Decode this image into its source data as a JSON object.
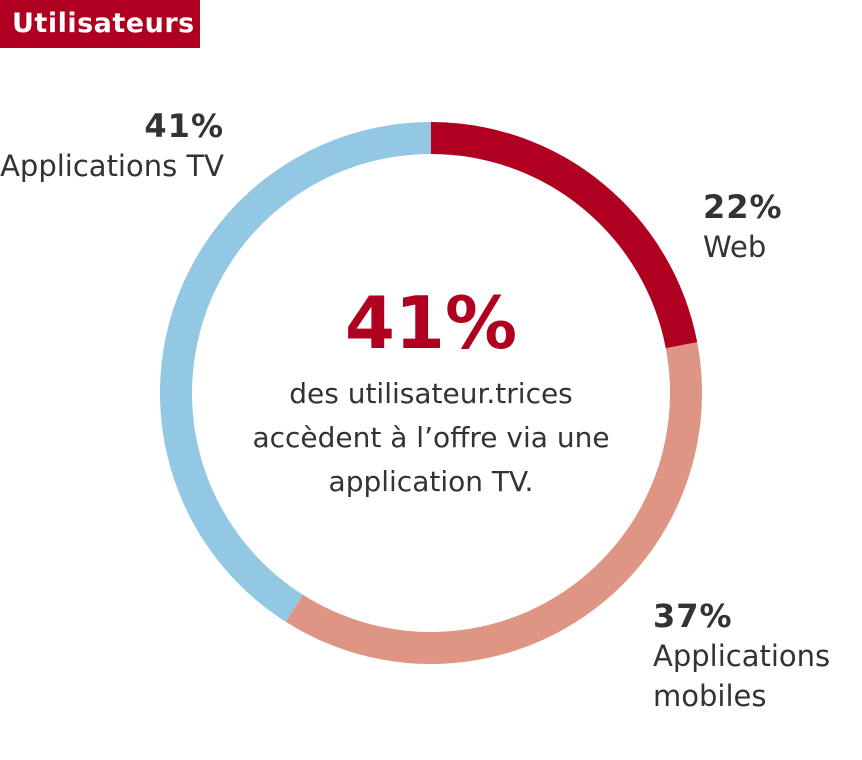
{
  "header": {
    "title": "Utilisateurs"
  },
  "center": {
    "value": "41%",
    "text": "des utilisateur.trices accèdent à l’offre via une application TV."
  },
  "chart_data": {
    "type": "pie",
    "donut": true,
    "slices": [
      {
        "label": "Web",
        "value": 22,
        "display": "22%",
        "color": "#b00020"
      },
      {
        "label": "Applications mobiles",
        "value": 37,
        "display": "37%",
        "color": "#df9583"
      },
      {
        "label": "Applications TV",
        "value": 41,
        "display": "41%",
        "color": "#92c8e3"
      }
    ]
  },
  "colors": {
    "accent": "#b00020",
    "text": "#333333"
  }
}
